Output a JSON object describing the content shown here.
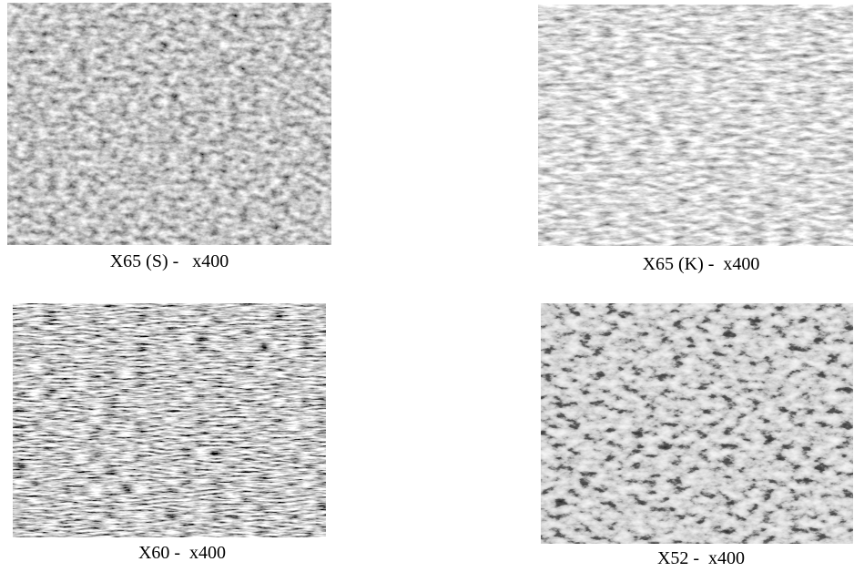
{
  "figures": [
    {
      "caption": "X65 (S) -   x400"
    },
    {
      "caption": "X65 (K) -  x400"
    },
    {
      "caption": "X60 -  x400"
    },
    {
      "caption": "X52 -  x400"
    }
  ]
}
